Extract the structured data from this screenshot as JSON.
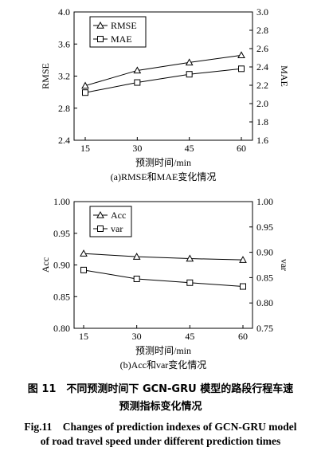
{
  "chart_data": [
    {
      "type": "line",
      "subtitle": "(a)RMSE和MAE变化情况",
      "xlabel": "预测时间/min",
      "ylabel": "RMSE",
      "y2label": "MAE",
      "x": [
        15,
        30,
        45,
        60
      ],
      "xticks": [
        "15",
        "30",
        "45",
        "60"
      ],
      "ylim": [
        2.4,
        4.0
      ],
      "yticks": [
        "2.4",
        "2.8",
        "3.2",
        "3.6",
        "4.0"
      ],
      "y2lim": [
        1.6,
        3.0
      ],
      "y2ticks": [
        "1.6",
        "1.8",
        "2.0",
        "2.2",
        "2.4",
        "2.6",
        "2.8",
        "3.0"
      ],
      "grid": false,
      "legend_position": "top-left",
      "series": [
        {
          "name": "RMSE",
          "marker": "triangle",
          "axis": "left",
          "values": [
            3.08,
            3.27,
            3.37,
            3.46
          ]
        },
        {
          "name": "MAE",
          "marker": "square",
          "axis": "right",
          "values": [
            2.12,
            2.23,
            2.32,
            2.38
          ]
        }
      ]
    },
    {
      "type": "line",
      "subtitle": "(b)Acc和var变化情况",
      "xlabel": "预测时间/min",
      "ylabel": "Acc",
      "y2label": "var",
      "x": [
        15,
        30,
        45,
        60
      ],
      "xticks": [
        "15",
        "30",
        "45",
        "60"
      ],
      "ylim": [
        0.8,
        1.0
      ],
      "yticks": [
        "0.80",
        "0.85",
        "0.90",
        "0.95",
        "1.00"
      ],
      "y2lim": [
        0.75,
        1.0
      ],
      "y2ticks": [
        "0.75",
        "0.80",
        "0.85",
        "0.90",
        "0.95",
        "1.00"
      ],
      "grid": false,
      "legend_position": "top-left",
      "series": [
        {
          "name": "Acc",
          "marker": "triangle",
          "axis": "left",
          "values": [
            0.918,
            0.913,
            0.91,
            0.908
          ]
        },
        {
          "name": "var",
          "marker": "square",
          "axis": "left",
          "values": [
            0.892,
            0.878,
            0.872,
            0.866
          ]
        }
      ]
    }
  ],
  "caption": {
    "cn_line1": "图 11　不同预测时间下 GCN-GRU 模型的路段行程车速",
    "cn_line2": "预测指标变化情况",
    "en_line1": "Fig.11　Changes of prediction indexes of GCN-GRU model",
    "en_line2": "of road travel speed under different prediction times"
  }
}
